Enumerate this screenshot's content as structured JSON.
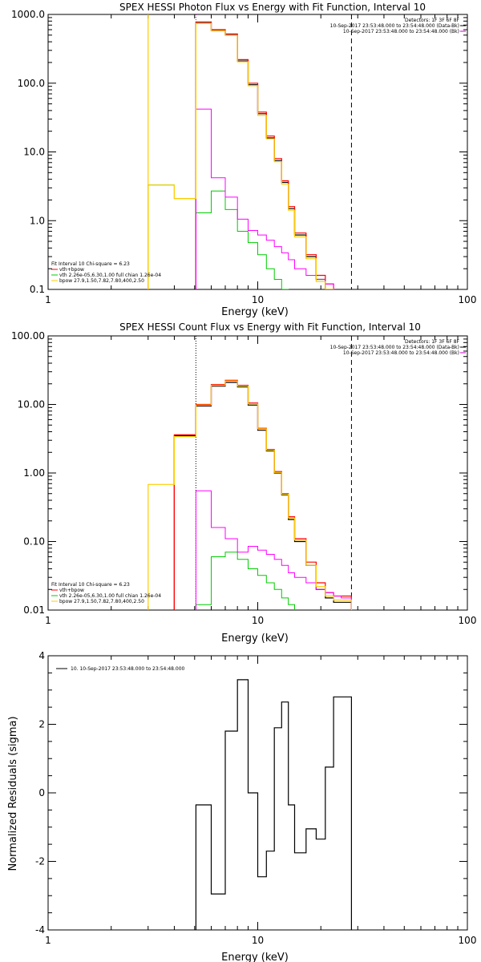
{
  "chart_data": [
    {
      "type": "line",
      "title": "SPEX HESSI Photon Flux vs Energy with Fit Function, Interval 10",
      "xlabel": "Energy (keV)",
      "ylabel": "",
      "xscale": "log",
      "yscale": "log",
      "xlim": [
        1,
        100
      ],
      "ylim": [
        0.1,
        1000
      ],
      "xticks": [
        {
          "v": 1,
          "label": "1"
        },
        {
          "v": 10,
          "label": "10"
        },
        {
          "v": 100,
          "label": "100"
        }
      ],
      "yticks": [
        {
          "v": 0.1,
          "label": "0.1"
        },
        {
          "v": 1,
          "label": "1.0"
        },
        {
          "v": 10,
          "label": "10.0"
        },
        {
          "v": 100,
          "label": "100.0"
        },
        {
          "v": 1000,
          "label": "1000.0"
        }
      ],
      "info_lines": [
        "Detectors: 1F 3F 6F 8F",
        "10-Sep-2017 23:53:48.000 to 23:54:48.000 (Data-Bk)",
        "10-Sep-2017 23:53:48.000 to 23:54:48.000 (Bk)"
      ],
      "fit_lines": [
        "Fit Interval 10   Chi-square = 6.23",
        "vth+bpow",
        "vth 2.26e-05,6.30,1.00  full chian 1.26e-04",
        "bpow 27.9,1.50,7.82,7.80,400,2.50"
      ],
      "vlines": [
        {
          "x": 5.07,
          "style": "dotted",
          "color": "#cc00cc"
        },
        {
          "x": 28.0,
          "style": "dashed",
          "color": "#000000"
        }
      ],
      "edges": [
        3.0,
        4.0,
        5.07,
        6.0,
        7.0,
        8.0,
        9.0,
        10.0,
        11.0,
        12.0,
        13.0,
        14.0,
        15.0,
        17.0,
        19.0,
        21.0,
        23.0,
        25.0,
        28.0
      ],
      "series": [
        {
          "role": "data",
          "color": "#000000",
          "width": 1.2,
          "values": [
            null,
            null,
            750,
            580,
            500,
            210,
            95,
            36,
            16,
            7.5,
            3.6,
            1.5,
            0.62,
            0.3,
            0.14,
            0.1,
            null,
            null
          ]
        },
        {
          "role": "total-fit",
          "color": "#ff0000",
          "width": 1.2,
          "values": [
            null,
            null,
            780,
            600,
            520,
            220,
            100,
            38,
            17,
            8.0,
            3.8,
            1.6,
            0.66,
            0.32,
            0.16,
            0.12,
            null,
            null
          ]
        },
        {
          "role": "vth",
          "color": "#00cc00",
          "width": 1.0,
          "values": [
            3.3,
            2.1,
            1.3,
            2.7,
            1.45,
            0.7,
            0.48,
            0.32,
            0.2,
            0.14,
            0.1,
            null,
            null,
            null,
            null,
            null,
            null,
            null
          ]
        },
        {
          "role": "bpow",
          "color": "#ff00ff",
          "width": 1.0,
          "values": [
            null,
            null,
            42,
            4.2,
            2.2,
            1.05,
            0.72,
            0.62,
            0.52,
            0.42,
            0.34,
            0.27,
            0.2,
            0.16,
            0.14,
            0.12,
            null,
            null
          ]
        },
        {
          "role": "total",
          "color": "#ffcc00",
          "width": 1.2,
          "values": [
            3.3,
            2.1,
            740,
            575,
            495,
            205,
            92,
            34,
            15.5,
            7.2,
            3.4,
            1.42,
            0.58,
            0.28,
            0.13,
            0.1,
            null,
            null
          ]
        }
      ],
      "verticals": [
        {
          "x": 3.0,
          "from": 0.1,
          "to": 1000,
          "color": "#ffcc00"
        }
      ]
    },
    {
      "type": "line",
      "title": "SPEX HESSI Count Flux vs Energy with Fit Function, Interval 10",
      "xlabel": "Energy (keV)",
      "ylabel": "",
      "xscale": "log",
      "yscale": "log",
      "xlim": [
        1,
        100
      ],
      "ylim": [
        0.01,
        100
      ],
      "xticks": [
        {
          "v": 1,
          "label": "1"
        },
        {
          "v": 10,
          "label": "10"
        },
        {
          "v": 100,
          "label": "100"
        }
      ],
      "yticks": [
        {
          "v": 0.01,
          "label": "0.01"
        },
        {
          "v": 0.1,
          "label": "0.10"
        },
        {
          "v": 1,
          "label": "1.00"
        },
        {
          "v": 10,
          "label": "10.00"
        },
        {
          "v": 100,
          "label": "100.00"
        }
      ],
      "info_lines": [
        "Detectors: 1F 3F 6F 8F",
        "10-Sep-2017 23:53:48.000 to 23:54:48.000 (Data-Bk)",
        "10-Sep-2017 23:53:48.000 to 23:54:48.000 (Bk)"
      ],
      "fit_lines": [
        "Fit Interval 10   Chi-square = 6.23",
        "vth+bpow",
        "vth 2.26e-05,6.30,1.00  full chian 1.26e-04",
        "bpow 27.9,1.50,7.82,7.80,400,2.50"
      ],
      "vlines": [
        {
          "x": 5.07,
          "style": "dotted",
          "color": "#000000"
        },
        {
          "x": 28.0,
          "style": "dashed",
          "color": "#000000"
        }
      ],
      "edges": [
        3.0,
        4.0,
        5.07,
        6.0,
        7.0,
        8.0,
        9.0,
        10.0,
        11.0,
        12.0,
        13.0,
        14.0,
        15.0,
        17.0,
        19.0,
        21.0,
        23.0,
        25.0,
        28.0
      ],
      "series": [
        {
          "role": "data",
          "color": "#000000",
          "width": 1.2,
          "values": [
            null,
            3.5,
            9.5,
            18.5,
            21.0,
            18.0,
            9.8,
            4.2,
            2.1,
            1.0,
            0.48,
            0.21,
            0.1,
            0.045,
            0.02,
            0.015,
            0.013,
            0.013
          ]
        },
        {
          "role": "total-fit",
          "color": "#ff0000",
          "width": 1.2,
          "values": [
            null,
            3.6,
            10.0,
            19.5,
            22.5,
            19.0,
            10.5,
            4.5,
            2.2,
            1.05,
            0.5,
            0.23,
            0.11,
            0.05,
            0.025,
            0.018,
            0.016,
            0.016
          ]
        },
        {
          "role": "vth",
          "color": "#00cc00",
          "width": 1.0,
          "values": [
            null,
            null,
            0.012,
            0.06,
            0.07,
            0.055,
            0.04,
            0.032,
            0.025,
            0.02,
            0.015,
            0.012,
            null,
            null,
            null,
            null,
            null,
            null
          ]
        },
        {
          "role": "bpow",
          "color": "#ff00ff",
          "width": 1.0,
          "values": [
            null,
            null,
            0.55,
            0.16,
            0.11,
            0.07,
            0.085,
            0.075,
            0.065,
            0.055,
            0.045,
            0.035,
            0.03,
            0.025,
            0.02,
            0.018,
            0.016,
            0.015
          ]
        },
        {
          "role": "total",
          "color": "#ffcc00",
          "width": 1.2,
          "values": [
            0.68,
            3.4,
            9.8,
            19.0,
            22.0,
            18.5,
            10.2,
            4.4,
            2.15,
            1.02,
            0.49,
            0.22,
            0.105,
            0.045,
            0.022,
            0.016,
            0.014,
            0.014
          ]
        }
      ],
      "verticals": []
    },
    {
      "type": "line",
      "title": "",
      "xlabel": "Energy (keV)",
      "ylabel": "Normalized Residuals (sigma)",
      "xscale": "log",
      "yscale": "linear",
      "xlim": [
        1,
        100
      ],
      "ylim": [
        -4,
        4
      ],
      "xticks": [
        {
          "v": 1,
          "label": "1"
        },
        {
          "v": 10,
          "label": "10"
        },
        {
          "v": 100,
          "label": "100"
        }
      ],
      "yticks": [
        {
          "v": -4,
          "label": "-4"
        },
        {
          "v": -2,
          "label": "-2"
        },
        {
          "v": 0,
          "label": "0"
        },
        {
          "v": 2,
          "label": "2"
        },
        {
          "v": 4,
          "label": "4"
        }
      ],
      "legend": [
        "10. 10-Sep-2017 23:53:48.000 to 23:54:48.000"
      ],
      "edges": [
        5.07,
        6.0,
        7.0,
        8.0,
        9.0,
        10.0,
        11.0,
        12.0,
        13.0,
        14.0,
        15.0,
        17.0,
        19.0,
        21.0,
        23.0,
        25.0,
        28.0
      ],
      "series": [
        {
          "role": "residuals",
          "color": "#000000",
          "width": 1.2,
          "values": [
            -0.35,
            -2.95,
            1.8,
            3.3,
            0.0,
            -2.45,
            -1.7,
            1.9,
            2.65,
            -0.35,
            -1.75,
            -1.05,
            -1.35,
            0.75,
            2.8,
            2.8
          ]
        }
      ]
    }
  ]
}
